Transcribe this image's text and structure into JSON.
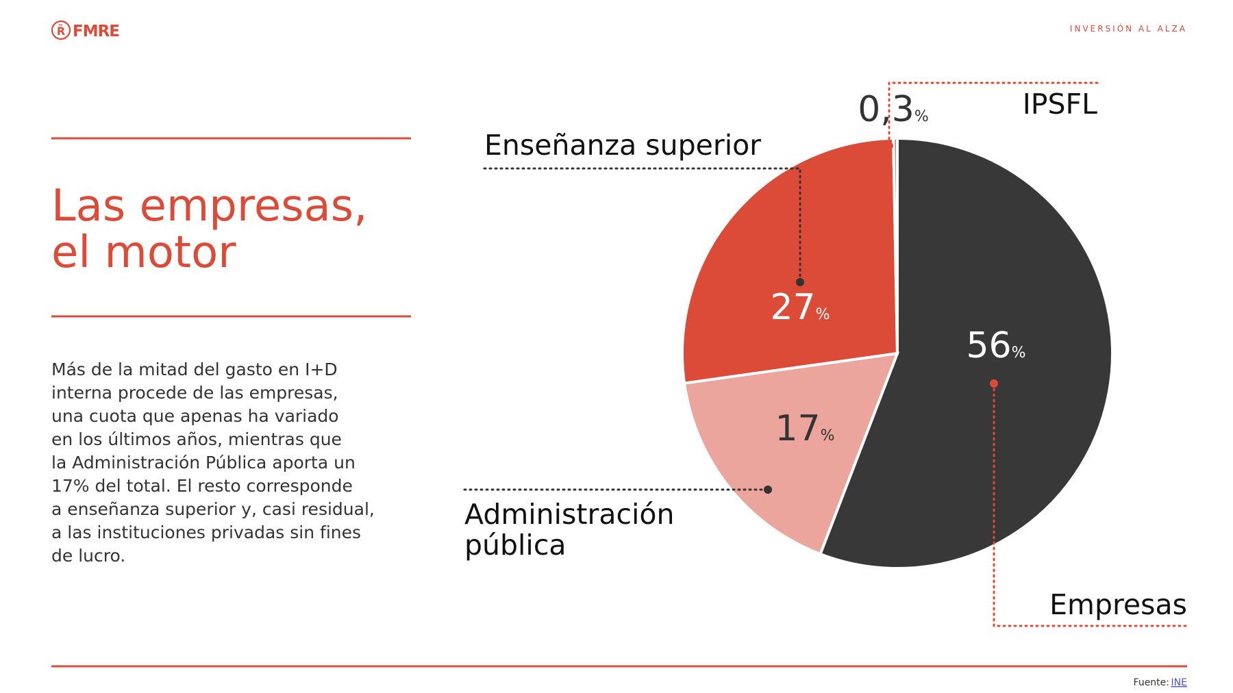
{
  "header": {
    "logo_icon": "R̃",
    "logo": "FMRE",
    "section": "INVERSIÓN AL ALZA"
  },
  "title_lines": [
    "Las empresas,",
    "el motor"
  ],
  "body_lines": [
    "Más de la mitad del gasto en I+D",
    "interna procede de las empresas,",
    "una cuota que apenas ha variado",
    "en los últimos años, mientras que",
    "la Administración Pública aporta un",
    "17% del total. El resto corresponde",
    "a enseñanza superior y, casi residual,",
    "a las instituciones privadas sin fines",
    "de lucro."
  ],
  "source": {
    "label": "Fuente:",
    "link": "INE"
  },
  "chart_data": {
    "type": "pie",
    "categories": [
      "Empresas",
      "Administración pública",
      "Enseñanza superior",
      "IPSFL"
    ],
    "values": [
      56,
      17,
      27,
      0.3
    ],
    "value_labels": [
      "56%",
      "17%",
      "27%",
      "0,3%"
    ],
    "colors": [
      "#383838",
      "#eba59c",
      "#dc4a38",
      "#a0a0a0"
    ]
  }
}
